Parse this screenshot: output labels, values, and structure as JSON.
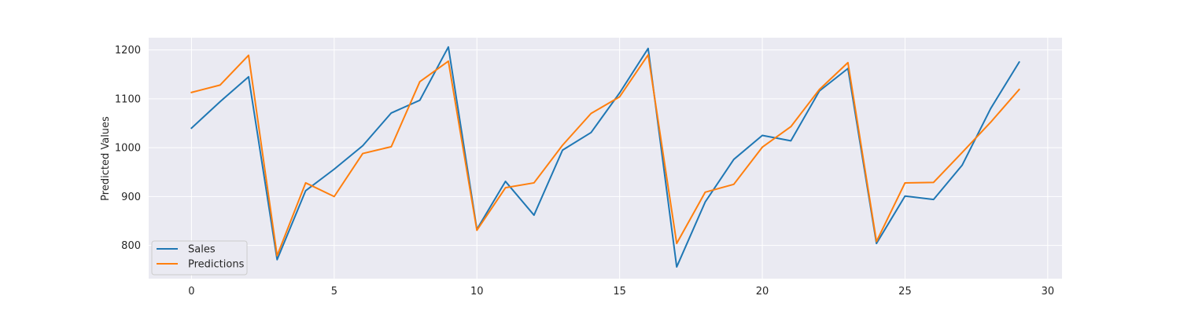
{
  "chart_data": {
    "type": "line",
    "title": "",
    "xlabel": "",
    "ylabel": "Predicted Values",
    "x": [
      0,
      1,
      2,
      3,
      4,
      5,
      6,
      7,
      8,
      9,
      10,
      11,
      12,
      13,
      14,
      15,
      16,
      17,
      18,
      19,
      20,
      21,
      22,
      23,
      24,
      25,
      26,
      27,
      28,
      29
    ],
    "xlim": [
      -1.5,
      30.5
    ],
    "ylim": [
      732,
      1225
    ],
    "xticks": [
      0,
      5,
      10,
      15,
      20,
      25,
      30
    ],
    "yticks": [
      800,
      900,
      1000,
      1100,
      1200
    ],
    "grid": true,
    "legend_position": "lower-left",
    "series": [
      {
        "name": "Sales",
        "color": "#1f77b4",
        "values": [
          1040,
          1094,
          1145,
          771,
          912,
          956,
          1004,
          1071,
          1097,
          1206,
          833,
          931,
          862,
          995,
          1031,
          1112,
          1203,
          756,
          889,
          976,
          1025,
          1014,
          1116,
          1162,
          804,
          901,
          894,
          964,
          1080,
          1175
        ]
      },
      {
        "name": "Predictions",
        "color": "#ff7f0e",
        "values": [
          1113,
          1128,
          1189,
          779,
          928,
          900,
          988,
          1002,
          1135,
          1177,
          831,
          918,
          928,
          1005,
          1070,
          1104,
          1190,
          804,
          909,
          925,
          1001,
          1043,
          1119,
          1174,
          808,
          928,
          929,
          990,
          1052,
          1119
        ]
      }
    ]
  }
}
